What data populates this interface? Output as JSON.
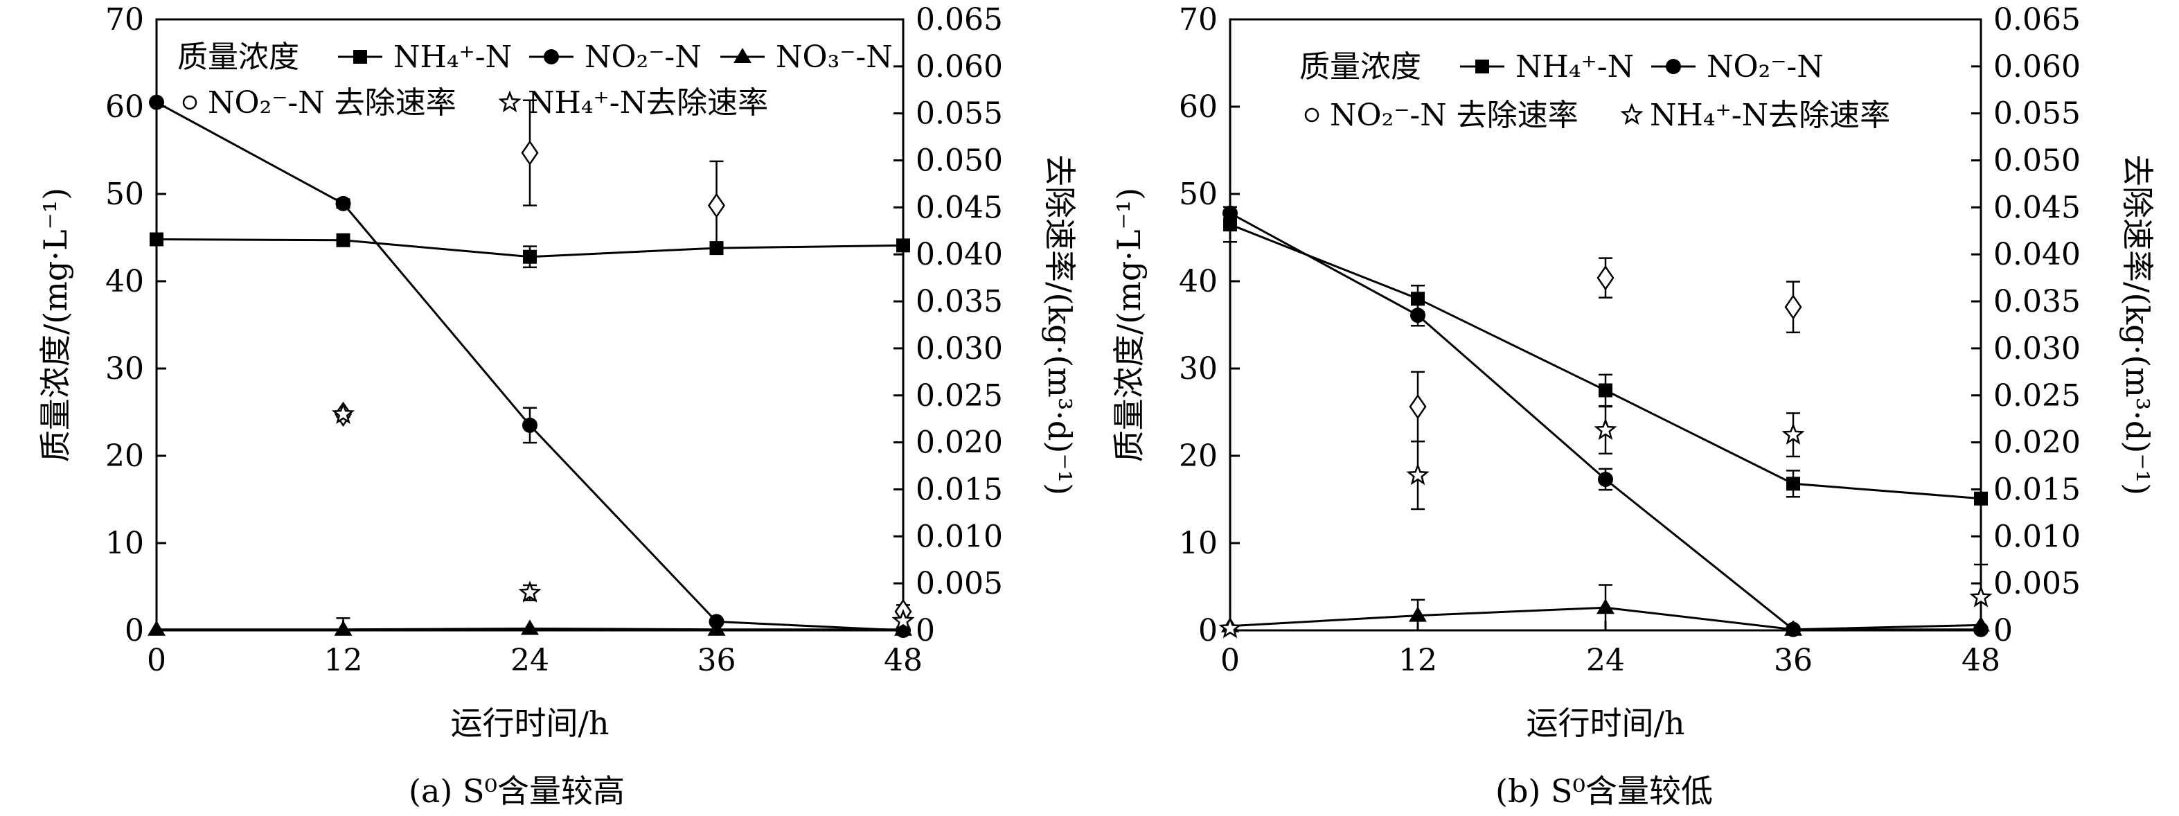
{
  "chart_data": [
    {
      "type": "line",
      "caption": "(a) S⁰含量较高",
      "xlabel": "运行时间/h",
      "ylabel": "质量浓度/(mg·L⁻¹)",
      "y2label": "去除速率/(kg·(m³·d)⁻¹)",
      "xlim": [
        0,
        48
      ],
      "ylim": [
        0,
        70
      ],
      "y2lim": [
        0,
        0.065
      ],
      "x_ticks": [
        "0",
        "12",
        "24",
        "36",
        "48"
      ],
      "y_ticks": [
        "0",
        "10",
        "20",
        "30",
        "40",
        "50",
        "60",
        "70"
      ],
      "y2_ticks": [
        "0",
        "0.005",
        "0.010",
        "0.015",
        "0.020",
        "0.025",
        "0.030",
        "0.035",
        "0.040",
        "0.045",
        "0.050",
        "0.055",
        "0.060",
        "0.065"
      ],
      "legend_title": "质量浓度",
      "legend": [
        {
          "label": "NH₄⁺-N",
          "marker": "square",
          "line": true
        },
        {
          "label": "NO₂⁻-N",
          "marker": "circle",
          "line": true
        },
        {
          "label": "NO₃⁻-N",
          "marker": "triangle",
          "line": true
        },
        {
          "label": "NO₂⁻-N 去除速率",
          "marker": "open-circle",
          "line": false
        },
        {
          "label": "NH₄⁺-N去除速率",
          "marker": "open-star",
          "line": false
        }
      ],
      "series": [
        {
          "name": "NH₄⁺-N",
          "axis": "left",
          "marker": "square",
          "x": [
            0,
            12,
            24,
            36,
            48
          ],
          "values": [
            44.8,
            44.7,
            42.8,
            43.8,
            44.1
          ],
          "err": [
            0,
            0.6,
            1.2,
            0,
            0
          ]
        },
        {
          "name": "NO₂⁻-N",
          "axis": "left",
          "marker": "circle",
          "x": [
            0,
            12,
            24,
            36,
            48
          ],
          "values": [
            60.5,
            48.9,
            23.5,
            1.0,
            0.0
          ],
          "err": [
            0,
            0.5,
            2.0,
            0,
            0
          ]
        },
        {
          "name": "NO₃⁻-N",
          "axis": "left",
          "marker": "triangle",
          "x": [
            0,
            12,
            24,
            36,
            48
          ],
          "values": [
            0.1,
            0.1,
            0.2,
            0.1,
            0.1
          ],
          "err": [
            0,
            1.3,
            0,
            0,
            0
          ]
        },
        {
          "name": "NO₂⁻-N 去除速率",
          "axis": "right",
          "marker": "open-diamond",
          "x": [
            12,
            24,
            36,
            48
          ],
          "values": [
            0.023,
            0.0508,
            0.0452,
            0.002
          ],
          "err": [
            0.0003,
            0.0056,
            0.0047,
            0.0007
          ]
        },
        {
          "name": "NH₄⁺-N去除速率",
          "axis": "right",
          "marker": "open-star",
          "x": [
            12,
            24,
            48
          ],
          "values": [
            0.023,
            0.004,
            0.001
          ],
          "err": [
            0,
            0.0008,
            0
          ]
        }
      ]
    },
    {
      "type": "line",
      "caption": "(b) S⁰含量较低",
      "xlabel": "运行时间/h",
      "ylabel": "质量浓度/(mg·L⁻¹)",
      "y2label": "去除速率/(kg·(m³·d)⁻¹)",
      "xlim": [
        0,
        48
      ],
      "ylim": [
        0,
        70
      ],
      "y2lim": [
        0,
        0.065
      ],
      "x_ticks": [
        "0",
        "12",
        "24",
        "36",
        "48"
      ],
      "y_ticks": [
        "0",
        "10",
        "20",
        "30",
        "40",
        "50",
        "60",
        "70"
      ],
      "y2_ticks": [
        "0",
        "0.005",
        "0.010",
        "0.015",
        "0.020",
        "0.025",
        "0.030",
        "0.035",
        "0.040",
        "0.045",
        "0.050",
        "0.055",
        "0.060",
        "0.065"
      ],
      "legend_title": "质量浓度",
      "legend": [
        {
          "label": "NH₄⁺-N",
          "marker": "square",
          "line": true
        },
        {
          "label": "NO₂⁻-N",
          "marker": "circle",
          "line": true
        },
        {
          "label": "NO₂⁻-N 去除速率",
          "marker": "open-circle",
          "line": false
        },
        {
          "label": "NH₄⁺-N去除速率",
          "marker": "open-star",
          "line": false
        }
      ],
      "series": [
        {
          "name": "NH₄⁺-N",
          "axis": "left",
          "marker": "square",
          "x": [
            0,
            12,
            24,
            36,
            48
          ],
          "values": [
            46.5,
            38.0,
            27.5,
            16.8,
            15.1
          ],
          "err": [
            2.0,
            1.5,
            1.8,
            1.5,
            0
          ]
        },
        {
          "name": "NO₂⁻-N",
          "axis": "left",
          "marker": "circle",
          "x": [
            0,
            12,
            24,
            36,
            48
          ],
          "values": [
            47.8,
            36.1,
            17.3,
            0.1,
            0.1
          ],
          "err": [
            0,
            1.2,
            1.2,
            0,
            0
          ]
        },
        {
          "name": "NO₃⁻-N",
          "axis": "left",
          "marker": "triangle",
          "x": [
            0,
            12,
            24,
            36,
            48
          ],
          "values": [
            0.5,
            1.7,
            2.6,
            0.1,
            0.6
          ],
          "err": [
            0,
            1.8,
            2.6,
            0,
            0
          ]
        },
        {
          "name": "NO₂⁻-N 去除速率",
          "axis": "right",
          "marker": "open-diamond",
          "x": [
            12,
            24,
            36
          ],
          "values": [
            0.0238,
            0.0375,
            0.0344
          ],
          "err": [
            0.0037,
            0.0021,
            0.0027
          ]
        },
        {
          "name": "NH₄⁺-N去除速率",
          "axis": "right",
          "marker": "open-star",
          "x": [
            0,
            12,
            24,
            36,
            48
          ],
          "values": [
            0.0002,
            0.0165,
            0.0213,
            0.0208,
            0.0035
          ],
          "err": [
            0,
            0.0036,
            0.0025,
            0.0023,
            0.0035
          ]
        }
      ]
    }
  ]
}
